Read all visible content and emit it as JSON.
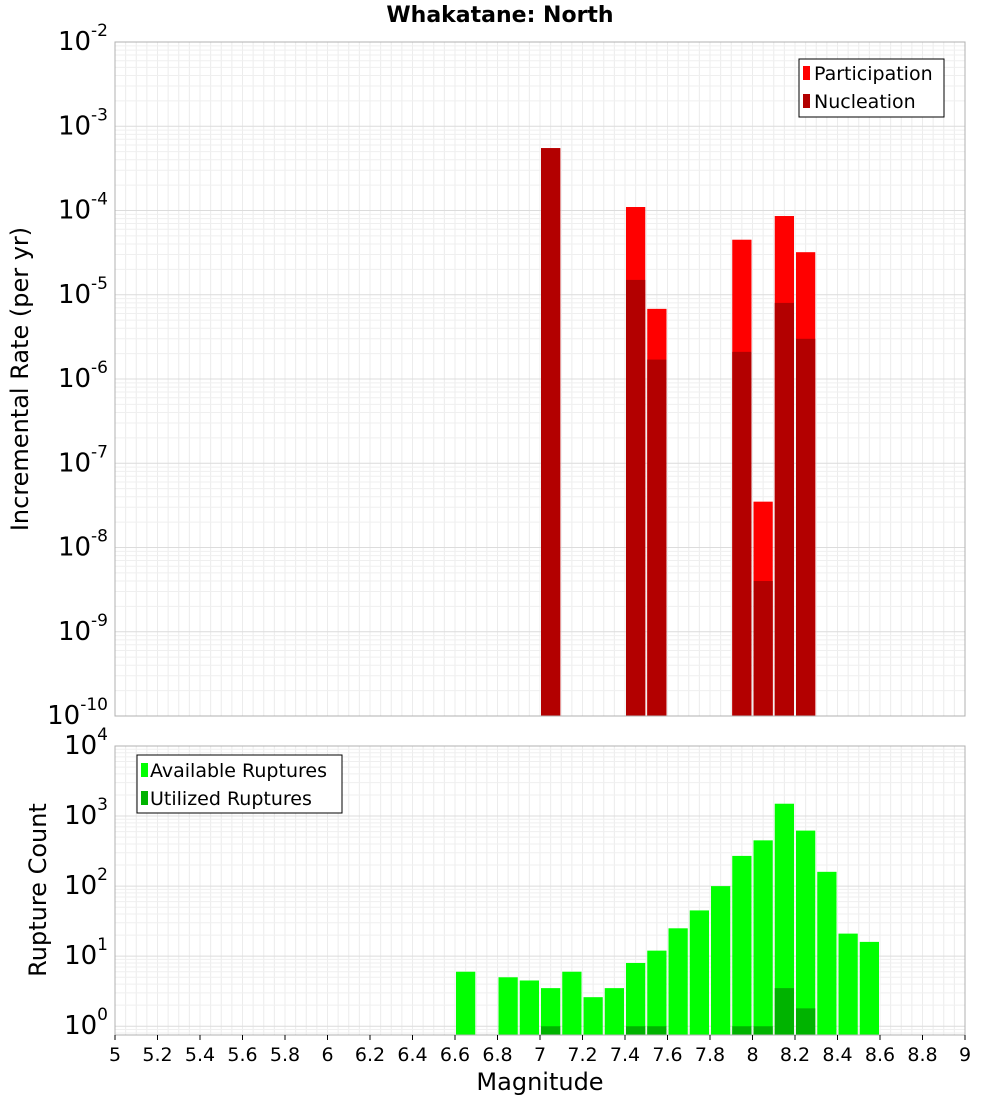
{
  "chart_data": [
    {
      "type": "bar",
      "title": "Whakatane: North",
      "ylabel": "Incremental Rate (per yr)",
      "xlim": [
        5,
        9
      ],
      "ylim": [
        1e-10,
        0.01
      ],
      "y_scale": "log",
      "y_ticks": [
        {
          "base": "10",
          "exp": "-10"
        },
        {
          "base": "10",
          "exp": "-9"
        },
        {
          "base": "10",
          "exp": "-8"
        },
        {
          "base": "10",
          "exp": "-7"
        },
        {
          "base": "10",
          "exp": "-6"
        },
        {
          "base": "10",
          "exp": "-5"
        },
        {
          "base": "10",
          "exp": "-4"
        },
        {
          "base": "10",
          "exp": "-3"
        },
        {
          "base": "10",
          "exp": "-2"
        }
      ],
      "grid": true,
      "legend_position": "top-right",
      "bar_width": 0.1,
      "series": [
        {
          "name": "Participation",
          "color": "#ff0000",
          "x": [
            7.05,
            7.45,
            7.55,
            7.95,
            8.05,
            8.15,
            8.25
          ],
          "values": [
            0.00055,
            0.00011,
            6.8e-06,
            4.5e-05,
            3.5e-08,
            8.6e-05,
            3.2e-05
          ]
        },
        {
          "name": "Nucleation",
          "color": "#b30000",
          "x": [
            7.05,
            7.45,
            7.55,
            7.95,
            8.05,
            8.15,
            8.25
          ],
          "values": [
            0.00055,
            1.5e-05,
            1.7e-06,
            2.1e-06,
            4e-09,
            8e-06,
            3e-06
          ]
        }
      ]
    },
    {
      "type": "bar",
      "xlabel": "Magnitude",
      "ylabel": "Rupture Count",
      "xlim": [
        5,
        9
      ],
      "ylim": [
        0.75,
        10000
      ],
      "y_scale": "log",
      "y_ticks": [
        {
          "value": 1,
          "base": "10",
          "exp": "0"
        },
        {
          "value": 10,
          "base": "10",
          "exp": "1"
        },
        {
          "value": 100,
          "base": "10",
          "exp": "2"
        },
        {
          "value": 1000,
          "base": "10",
          "exp": "3"
        },
        {
          "value": 10000,
          "base": "10",
          "exp": "4"
        }
      ],
      "x_ticks": [
        "5",
        "5.2",
        "5.4",
        "5.6",
        "5.8",
        "6",
        "6.2",
        "6.4",
        "6.6",
        "6.8",
        "7",
        "7.2",
        "7.4",
        "7.6",
        "7.8",
        "8",
        "8.2",
        "8.4",
        "8.6",
        "8.8",
        "9"
      ],
      "grid": true,
      "legend_position": "top-left",
      "bar_width": 0.1,
      "series": [
        {
          "name": "Available Ruptures",
          "color": "#00ff00",
          "x": [
            6.65,
            6.85,
            6.95,
            7.05,
            7.15,
            7.25,
            7.35,
            7.45,
            7.55,
            7.65,
            7.75,
            7.85,
            7.95,
            8.05,
            8.15,
            8.25,
            8.35,
            8.45,
            8.55
          ],
          "values": [
            6,
            5,
            4.5,
            3.5,
            6,
            2.6,
            3.5,
            8,
            12,
            25,
            45,
            100,
            270,
            450,
            1500,
            620,
            160,
            21,
            16
          ]
        },
        {
          "name": "Utilized Ruptures",
          "color": "#00b300",
          "x": [
            7.05,
            7.45,
            7.55,
            7.95,
            8.05,
            8.15,
            8.25
          ],
          "values": [
            1,
            1,
            1,
            1,
            1,
            3.5,
            1.8
          ]
        }
      ]
    }
  ]
}
